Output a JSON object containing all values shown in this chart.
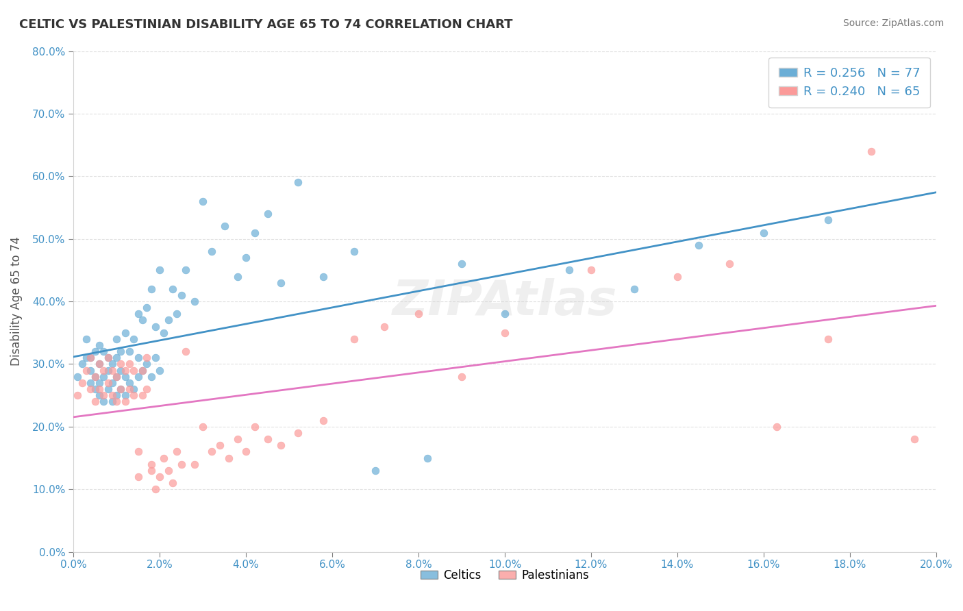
{
  "title": "CELTIC VS PALESTINIAN DISABILITY AGE 65 TO 74 CORRELATION CHART",
  "xlabel": "",
  "ylabel": "Disability Age 65 to 74",
  "source_text": "Source: ZipAtlas.com",
  "watermark": "ZIPAtlas",
  "xlim": [
    0.0,
    0.2
  ],
  "ylim": [
    0.0,
    0.8
  ],
  "xticks": [
    0.0,
    0.02,
    0.04,
    0.06,
    0.08,
    0.1,
    0.12,
    0.14,
    0.16,
    0.18,
    0.2
  ],
  "yticks": [
    0.0,
    0.1,
    0.2,
    0.3,
    0.4,
    0.5,
    0.6,
    0.7,
    0.8
  ],
  "xtick_labels": [
    "0.0%",
    "2.0%",
    "4.0%",
    "6.0%",
    "8.0%",
    "10.0%",
    "12.0%",
    "14.0%",
    "16.0%",
    "18.0%",
    "20.0%"
  ],
  "ytick_labels": [
    "0.0%",
    "10.0%",
    "20.0%",
    "30.0%",
    "40.0%",
    "50.0%",
    "60.0%",
    "70.0%",
    "80.0%"
  ],
  "celtics_color": "#6baed6",
  "palestinians_color": "#fb9a99",
  "celtics_line_color": "#4292c6",
  "palestinians_line_color": "#e377c2",
  "R_celtics": 0.256,
  "N_celtics": 77,
  "R_palestinians": 0.24,
  "N_palestinians": 65,
  "legend_label_celtics": "Celtics",
  "legend_label_palestinians": "Palestinians",
  "celtics_x": [
    0.001,
    0.002,
    0.003,
    0.003,
    0.004,
    0.004,
    0.004,
    0.005,
    0.005,
    0.005,
    0.006,
    0.006,
    0.006,
    0.006,
    0.007,
    0.007,
    0.007,
    0.008,
    0.008,
    0.008,
    0.009,
    0.009,
    0.009,
    0.01,
    0.01,
    0.01,
    0.01,
    0.011,
    0.011,
    0.011,
    0.012,
    0.012,
    0.012,
    0.013,
    0.013,
    0.014,
    0.014,
    0.015,
    0.015,
    0.015,
    0.016,
    0.016,
    0.017,
    0.017,
    0.018,
    0.018,
    0.019,
    0.019,
    0.02,
    0.02,
    0.021,
    0.022,
    0.023,
    0.024,
    0.025,
    0.026,
    0.028,
    0.03,
    0.032,
    0.035,
    0.038,
    0.04,
    0.042,
    0.045,
    0.048,
    0.052,
    0.058,
    0.065,
    0.07,
    0.082,
    0.09,
    0.1,
    0.115,
    0.13,
    0.145,
    0.16,
    0.175
  ],
  "celtics_y": [
    0.28,
    0.3,
    0.31,
    0.34,
    0.27,
    0.29,
    0.31,
    0.26,
    0.28,
    0.32,
    0.25,
    0.27,
    0.3,
    0.33,
    0.24,
    0.28,
    0.32,
    0.26,
    0.29,
    0.31,
    0.24,
    0.27,
    0.3,
    0.25,
    0.28,
    0.31,
    0.34,
    0.26,
    0.29,
    0.32,
    0.25,
    0.28,
    0.35,
    0.27,
    0.32,
    0.26,
    0.34,
    0.28,
    0.31,
    0.38,
    0.29,
    0.37,
    0.3,
    0.39,
    0.28,
    0.42,
    0.31,
    0.36,
    0.29,
    0.45,
    0.35,
    0.37,
    0.42,
    0.38,
    0.41,
    0.45,
    0.4,
    0.56,
    0.48,
    0.52,
    0.44,
    0.47,
    0.51,
    0.54,
    0.43,
    0.59,
    0.44,
    0.48,
    0.13,
    0.15,
    0.46,
    0.38,
    0.45,
    0.42,
    0.49,
    0.51,
    0.53
  ],
  "palestinians_x": [
    0.001,
    0.002,
    0.003,
    0.004,
    0.004,
    0.005,
    0.005,
    0.006,
    0.006,
    0.007,
    0.007,
    0.008,
    0.008,
    0.009,
    0.009,
    0.01,
    0.01,
    0.011,
    0.011,
    0.012,
    0.012,
    0.013,
    0.013,
    0.014,
    0.014,
    0.015,
    0.015,
    0.016,
    0.016,
    0.017,
    0.017,
    0.018,
    0.018,
    0.019,
    0.02,
    0.021,
    0.022,
    0.023,
    0.024,
    0.025,
    0.026,
    0.028,
    0.03,
    0.032,
    0.034,
    0.036,
    0.038,
    0.04,
    0.042,
    0.045,
    0.048,
    0.052,
    0.058,
    0.065,
    0.072,
    0.08,
    0.09,
    0.1,
    0.12,
    0.14,
    0.152,
    0.163,
    0.175,
    0.185,
    0.195
  ],
  "palestinians_y": [
    0.25,
    0.27,
    0.29,
    0.26,
    0.31,
    0.24,
    0.28,
    0.26,
    0.3,
    0.25,
    0.29,
    0.27,
    0.31,
    0.25,
    0.29,
    0.24,
    0.28,
    0.26,
    0.3,
    0.24,
    0.29,
    0.26,
    0.3,
    0.25,
    0.29,
    0.12,
    0.16,
    0.25,
    0.29,
    0.26,
    0.31,
    0.13,
    0.14,
    0.1,
    0.12,
    0.15,
    0.13,
    0.11,
    0.16,
    0.14,
    0.32,
    0.14,
    0.2,
    0.16,
    0.17,
    0.15,
    0.18,
    0.16,
    0.2,
    0.18,
    0.17,
    0.19,
    0.21,
    0.34,
    0.36,
    0.38,
    0.28,
    0.35,
    0.45,
    0.44,
    0.46,
    0.2,
    0.34,
    0.64,
    0.18
  ]
}
